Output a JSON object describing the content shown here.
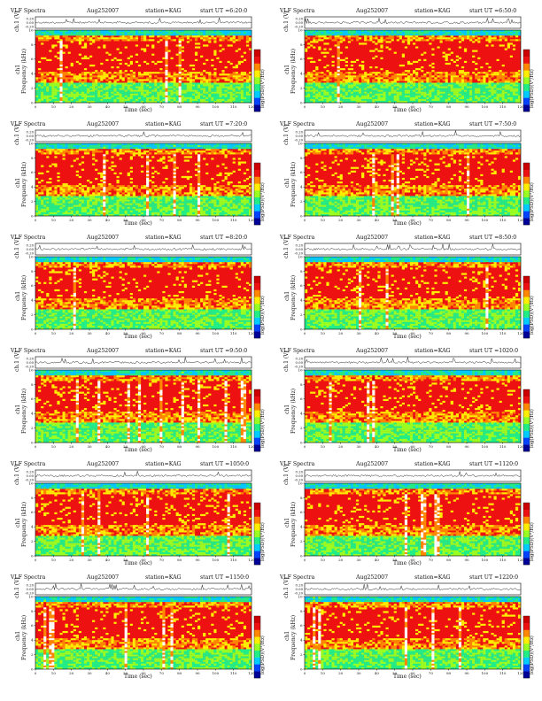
{
  "labels": {
    "title": "VLF Spectra",
    "date": "Aug252007",
    "station": "station=KAG",
    "start_prefix": "start  UT  =",
    "xlabel": "Time  (sec)",
    "ylabel_freq": "Frequency  (kHz)",
    "ylabel_ch": "ch1",
    "ylabel_wave": "ch.1 (V)",
    "colorbar_label": "log(PSD)(V²/Hz)"
  },
  "colors": {
    "spectrum": [
      "#000099",
      "#0044ff",
      "#00ccff",
      "#22ee88",
      "#99ff22",
      "#ffee00",
      "#ff8800",
      "#ee1111",
      "#cc0000"
    ]
  },
  "panels": [
    {
      "start": "6:20:0"
    },
    {
      "start": "6:50:0"
    },
    {
      "start": "7:20:0"
    },
    {
      "start": "7:50:0"
    },
    {
      "start": "8:20:0"
    },
    {
      "start": "8:50:0"
    },
    {
      "start": "9:50:0"
    },
    {
      "start": "1020:0"
    },
    {
      "start": "1050:0"
    },
    {
      "start": "1120:0"
    },
    {
      "start": "1150:0"
    },
    {
      "start": "1220:0"
    }
  ],
  "chart_data": {
    "type": "heatmap",
    "x": {
      "label": "Time  (sec)",
      "range": [
        0,
        120
      ],
      "ticks": [
        0,
        10,
        20,
        30,
        40,
        50,
        60,
        70,
        80,
        90,
        100,
        110,
        120
      ]
    },
    "y": {
      "label": "Frequency  (kHz)",
      "range": [
        0,
        10
      ],
      "ticks": [
        0,
        2,
        4,
        6,
        8,
        10
      ]
    },
    "waveform": {
      "label": "ch.1 (V)",
      "ticks": [
        "0.20",
        "0.00",
        "-0.20"
      ]
    }
  }
}
